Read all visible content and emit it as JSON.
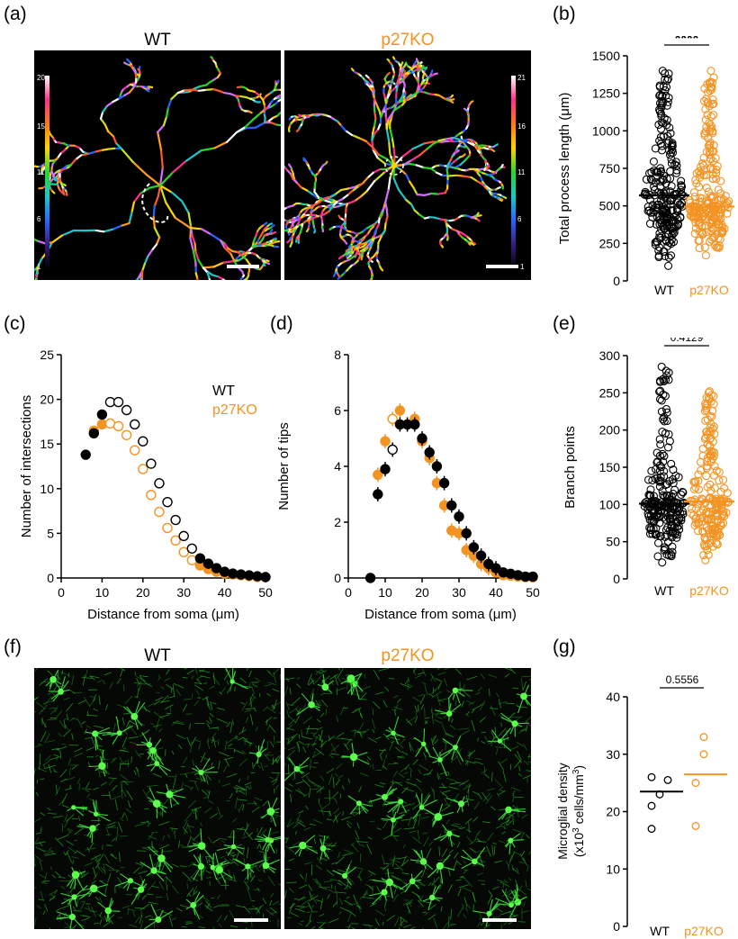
{
  "panel_labels": [
    "(a)",
    "(b)",
    "(c)",
    "(d)",
    "(e)",
    "(f)",
    "(g)"
  ],
  "genotypes": {
    "wt": "WT",
    "ko": "p27KO"
  },
  "colors": {
    "wt": "#000000",
    "ko": "#f39322"
  },
  "colorbar_wt": [
    "20",
    "15",
    "11",
    "6",
    "1"
  ],
  "colorbar_ko": [
    "21",
    "16",
    "11",
    "6",
    "1"
  ],
  "chart_data": [
    {
      "id": "b",
      "type": "scatter",
      "ylabel": "Total process length (μm)",
      "ylim": [
        0,
        1500
      ],
      "yticks": [
        0,
        250,
        500,
        750,
        1000,
        1250,
        1500
      ],
      "categories": [
        "WT",
        "p27KO"
      ],
      "medians": [
        570,
        495
      ],
      "significance": "****",
      "y_range_per_group": [
        [
          100,
          1400
        ],
        [
          170,
          1400
        ]
      ]
    },
    {
      "id": "c",
      "type": "scatter",
      "xlabel": "Distance from soma (μm)",
      "ylabel": "Number of intersections",
      "xlim": [
        0,
        50
      ],
      "ylim": [
        0,
        25
      ],
      "xticks": [
        0,
        10,
        20,
        30,
        40,
        50
      ],
      "yticks": [
        0,
        5,
        10,
        15,
        20,
        25
      ],
      "legend": [
        "WT",
        "p27KO"
      ],
      "series": [
        {
          "name": "WT",
          "x": [
            6,
            8,
            10,
            12,
            14,
            16,
            18,
            20,
            22,
            24,
            26,
            28,
            30,
            32,
            34,
            36,
            38,
            40,
            42,
            44,
            46,
            48,
            50
          ],
          "y": [
            13.8,
            16.2,
            18.3,
            19.7,
            19.7,
            18.8,
            17.2,
            15.3,
            12.8,
            10.6,
            8.5,
            6.5,
            4.7,
            3.3,
            2.2,
            1.6,
            1.1,
            0.7,
            0.5,
            0.4,
            0.3,
            0.2,
            0.1
          ],
          "filled": [
            true,
            true,
            true,
            false,
            false,
            false,
            false,
            false,
            false,
            false,
            false,
            false,
            false,
            false,
            true,
            true,
            true,
            true,
            true,
            true,
            true,
            true,
            true
          ]
        },
        {
          "name": "p27KO",
          "x": [
            8,
            10,
            12,
            14,
            16,
            18,
            20,
            22,
            24,
            26,
            28,
            30,
            32,
            34,
            36,
            38,
            40,
            42,
            44,
            46,
            48,
            50
          ],
          "y": [
            16.5,
            17.2,
            17.3,
            17.0,
            16.0,
            14.3,
            12.2,
            9.3,
            7.4,
            5.6,
            4.2,
            2.9,
            2.0,
            1.4,
            1.0,
            0.7,
            0.5,
            0.4,
            0.3,
            0.2,
            0.1,
            0.1
          ],
          "filled": [
            true,
            true,
            false,
            false,
            false,
            false,
            false,
            false,
            false,
            false,
            false,
            false,
            false,
            true,
            true,
            true,
            true,
            true,
            true,
            true,
            true,
            true
          ]
        }
      ]
    },
    {
      "id": "d",
      "type": "scatter",
      "xlabel": "Distance from soma (μm)",
      "ylabel": "Number of tips",
      "xlim": [
        0,
        50
      ],
      "ylim": [
        0,
        8
      ],
      "xticks": [
        0,
        10,
        20,
        30,
        40,
        50
      ],
      "yticks": [
        0,
        2,
        4,
        6,
        8
      ],
      "series": [
        {
          "name": "WT",
          "x": [
            6,
            8,
            10,
            12,
            14,
            16,
            18,
            20,
            22,
            24,
            26,
            28,
            30,
            32,
            34,
            36,
            38,
            40,
            42,
            44,
            46,
            48,
            50
          ],
          "y": [
            0,
            3.0,
            3.9,
            4.6,
            5.5,
            5.5,
            5.5,
            5.0,
            4.5,
            4.0,
            3.4,
            2.6,
            2.2,
            1.6,
            1.1,
            0.8,
            0.5,
            0.35,
            0.2,
            0.15,
            0.1,
            0.05,
            0.05
          ],
          "filled": [
            true,
            true,
            true,
            false,
            true,
            true,
            true,
            true,
            true,
            true,
            true,
            true,
            true,
            true,
            true,
            true,
            true,
            true,
            true,
            true,
            true,
            true,
            true
          ]
        },
        {
          "name": "p27KO",
          "x": [
            8,
            10,
            12,
            14,
            16,
            18,
            20,
            22,
            24,
            26,
            28,
            30,
            32,
            34,
            36,
            38,
            40,
            42,
            44,
            46,
            48,
            50
          ],
          "y": [
            3.7,
            4.9,
            5.7,
            6.0,
            5.5,
            5.7,
            4.9,
            4.3,
            3.4,
            2.6,
            1.7,
            1.6,
            1.0,
            0.8,
            0.5,
            0.35,
            0.2,
            0.1,
            0.08,
            0.05,
            0.03,
            0.02
          ],
          "filled": [
            true,
            true,
            false,
            true,
            true,
            true,
            true,
            true,
            true,
            true,
            true,
            true,
            true,
            true,
            true,
            true,
            true,
            true,
            true,
            true,
            true,
            true
          ]
        }
      ]
    },
    {
      "id": "e",
      "type": "scatter",
      "ylabel": "Branch points",
      "ylim": [
        0,
        300
      ],
      "yticks": [
        0,
        50,
        100,
        150,
        200,
        250,
        300
      ],
      "categories": [
        "WT",
        "p27KO"
      ],
      "medians": [
        101,
        104
      ],
      "significance": "0.4129",
      "y_range_per_group": [
        [
          22,
          285
        ],
        [
          25,
          252
        ]
      ]
    },
    {
      "id": "g",
      "type": "scatter",
      "ylabel": "Microglial density",
      "ylabel_line2_pre": "(x10",
      "ylabel_line2_sup1": "3",
      "ylabel_line2_mid": " cells/mm",
      "ylabel_line2_sup2": "3",
      "ylabel_line2_post": ")",
      "ylim": [
        0,
        40
      ],
      "yticks": [
        0,
        10,
        20,
        30,
        40
      ],
      "categories": [
        "WT",
        "p27KO"
      ],
      "medians": [
        23.5,
        26.5
      ],
      "significance": "0.5556",
      "points": [
        [
          26,
          25.5,
          23,
          21,
          17
        ],
        [
          33,
          30,
          25,
          17.5
        ]
      ]
    }
  ]
}
